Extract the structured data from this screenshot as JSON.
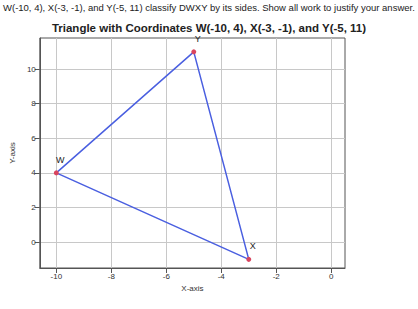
{
  "question": "W(-10, 4), X(-3, -1), and Y(-5, 11) classify DWXY by its sides.  Show all work to justify your answer.",
  "chart_data": {
    "type": "polygon",
    "title": "Triangle with Coordinates W(-10, 4), X(-3, -1), and Y(-5, 11)",
    "xlabel": "X-axis",
    "ylabel": "Y-axis",
    "x": [
      -10,
      -3,
      -5
    ],
    "values": [
      4,
      -1,
      11
    ],
    "point_labels": [
      "W",
      "X",
      "Y"
    ],
    "color": "#4a5fe0",
    "marker": "o",
    "xlim": [
      -10.6,
      0.5
    ],
    "xticks": [
      -10,
      -8,
      -6,
      -4,
      -2,
      0
    ],
    "ylim": [
      -1.5,
      11.8
    ],
    "yticks": [
      0,
      2,
      4,
      6,
      8,
      10
    ],
    "grid": true
  }
}
